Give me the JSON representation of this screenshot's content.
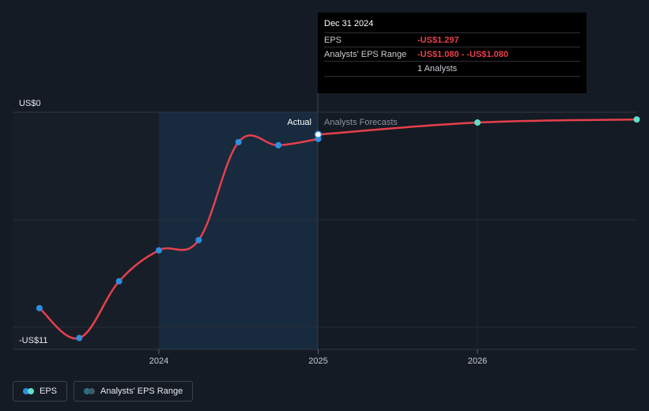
{
  "chart_data": {
    "type": "line",
    "title": "",
    "y_labels": {
      "top": "US$0",
      "bottom": "-US$11"
    },
    "ylim": [
      -11.5,
      0
    ],
    "x_ticks": [
      "2024",
      "2025",
      "2026"
    ],
    "region_labels": {
      "actual": "Actual",
      "forecast": "Analysts Forecasts"
    },
    "series": [
      {
        "name": "EPS",
        "kind": "actual",
        "points": [
          {
            "x": 2023.25,
            "y": -9.5
          },
          {
            "x": 2023.5,
            "y": -10.95
          },
          {
            "x": 2023.75,
            "y": -8.2
          },
          {
            "x": 2024.0,
            "y": -6.7
          },
          {
            "x": 2024.25,
            "y": -6.2
          },
          {
            "x": 2024.5,
            "y": -1.45
          },
          {
            "x": 2024.75,
            "y": -1.6
          },
          {
            "x": 2025.0,
            "y": -1.297
          }
        ]
      },
      {
        "name": "EPS forecast",
        "kind": "forecast",
        "points": [
          {
            "x": 2025.0,
            "y": -1.08
          },
          {
            "x": 2026.0,
            "y": -0.5
          },
          {
            "x": 2027.0,
            "y": -0.35
          }
        ]
      }
    ],
    "legend": [
      "EPS",
      "Analysts' EPS Range"
    ]
  },
  "tooltip": {
    "date": "Dec 31 2024",
    "rows": [
      {
        "label": "EPS",
        "value": "-US$1.297"
      },
      {
        "label": "Analysts' EPS Range",
        "value": "-US$1.080 - -US$1.080"
      },
      {
        "label": "",
        "value": "1 Analysts"
      }
    ]
  },
  "legend": {
    "eps_label": "EPS",
    "range_label": "Analysts' EPS Range"
  },
  "colors": {
    "line": "#e6404c",
    "actual_dot": "#2f8ee0",
    "forecast_dot": "#5fe0c8",
    "highlight_band": "#1a2d42",
    "grid": "#2a313c"
  }
}
